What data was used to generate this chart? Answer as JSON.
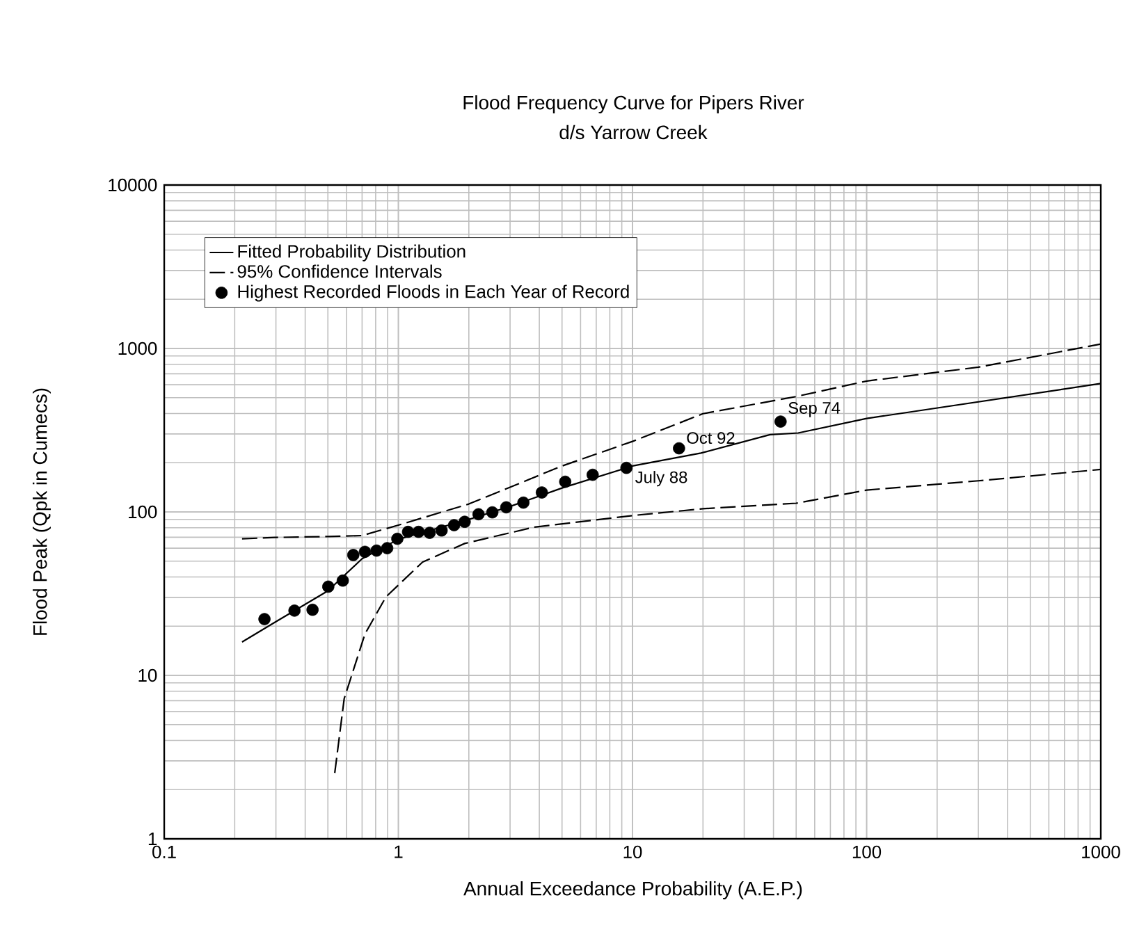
{
  "chart_data": {
    "type": "line",
    "title": "Flood Frequency Curve for Pipers River",
    "subtitle": "d/s Yarrow Creek",
    "xlabel": "Annual Exceedance Probability (A.E.P.)",
    "ylabel": "Flood Peak (Qpk in Cumecs)",
    "log": "xy",
    "grid": true,
    "legend": "top left",
    "xlim": [
      0.1,
      1000
    ],
    "ylim": [
      1,
      10000
    ],
    "xticks": [
      0.1,
      1,
      10,
      100,
      1000
    ],
    "yticks": [
      1,
      10,
      100,
      1000,
      10000
    ],
    "series": [
      {
        "name": "Fitted Probability Distribution",
        "color": "#000000",
        "line_style": "solid",
        "marker": "none",
        "x": [
          0.215,
          0.3,
          0.5,
          0.7,
          1,
          2,
          3,
          5,
          10,
          19.6,
          38.7,
          51,
          100,
          1000
        ],
        "values": [
          16,
          21.3,
          32.9,
          51.7,
          68,
          90,
          108,
          140,
          191,
          229,
          297,
          304,
          373,
          610
        ]
      },
      {
        "name": "95% Confidence Intervals",
        "color": "#000000",
        "line_style": "dashed",
        "marker": "none",
        "x": [
          0.215,
          0.3,
          0.5,
          0.7,
          1,
          2,
          5,
          10,
          20,
          50,
          100,
          300,
          1000
        ],
        "values": [
          68.5,
          69.8,
          70.7,
          71.7,
          83,
          111.8,
          191,
          270,
          399,
          508,
          632,
          768,
          1064
        ]
      },
      {
        "color": "#000000",
        "line_style": "dashed",
        "marker": "none",
        "x": [
          0.535,
          0.587,
          0.72,
          0.885,
          1.27,
          1.92,
          3.79,
          10,
          20,
          50,
          100,
          300,
          1000
        ],
        "values": [
          2.53,
          7.2,
          17.9,
          30.2,
          49.4,
          64.1,
          80.6,
          95,
          104.6,
          113,
          136,
          155,
          182
        ]
      },
      {
        "name": "Highest Recorded Floods in Each Year of Record",
        "type": "scatter",
        "color": "#000000",
        "marker": "circle",
        "x": [
          0.268,
          0.36,
          0.43,
          0.502,
          0.579,
          0.642,
          0.72,
          0.807,
          0.896,
          0.99,
          1.1,
          1.22,
          1.36,
          1.53,
          1.73,
          1.92,
          2.2,
          2.52,
          2.89,
          3.42,
          4.1,
          5.16,
          6.76,
          9.42,
          15.8,
          42.9
        ],
        "values": [
          22.1,
          24.9,
          25.2,
          34.9,
          38,
          54.5,
          57,
          58,
          60,
          68.5,
          75.5,
          75.5,
          74.5,
          77,
          83,
          87,
          96.8,
          99.4,
          106.7,
          114,
          131.5,
          153,
          168.7,
          186,
          245,
          357
        ]
      }
    ],
    "annotations": [
      {
        "text": "July 88",
        "x": 9.42,
        "y": 186
      },
      {
        "text": "Oct 92",
        "x": 15.8,
        "y": 245
      },
      {
        "text": "Sep 74",
        "x": 42.9,
        "y": 357
      }
    ]
  }
}
